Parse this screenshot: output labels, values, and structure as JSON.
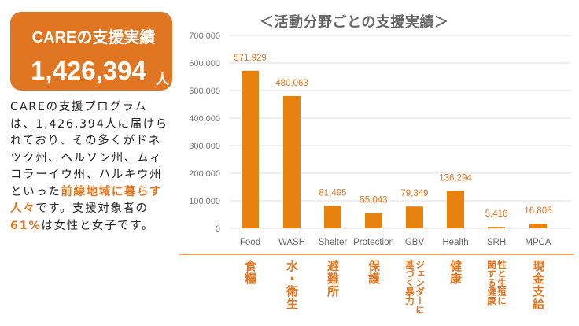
{
  "badge": {
    "title": "CAREの支援実績",
    "number": "1,426,394",
    "unit": "人"
  },
  "description": {
    "text1": "CAREの支援プログラムは、1,426,394人に届けられており、その多くがドネツク州、ヘルソン州、ムィコラーイウ州、ハルキウ州といった",
    "highlight1": "前線地域に暮らす人々",
    "text2": "です。支援対象者の",
    "highlight2": "61%",
    "text3": "は女性と女子です。"
  },
  "colors": {
    "accent": "#e07622",
    "bar": "#e8820e"
  },
  "chart_data": {
    "type": "bar",
    "title": "＜活動分野ごとの支援実績＞",
    "categories": [
      "Food",
      "WASH",
      "Shelter",
      "Protection",
      "GBV",
      "Health",
      "SRH",
      "MPCA"
    ],
    "values": [
      571929,
      480063,
      81495,
      55043,
      79349,
      136294,
      5416,
      16805
    ],
    "data_labels": [
      "571,929",
      "480,063",
      "81,495",
      "55,043",
      "79,349",
      "136,294",
      "5,416",
      "16,805"
    ],
    "yticks": [
      "0",
      "100,000",
      "200,000",
      "300,000",
      "400,000",
      "500,000",
      "600,000",
      "700,000"
    ],
    "ylim": [
      0,
      700000
    ],
    "grid": true,
    "jp_labels": [
      "食糧",
      "水・衛生",
      "避難所",
      "保護",
      "ジェンダーに\n基づく暴力",
      "健康",
      "性と生殖に\n関する健康",
      "現金支給"
    ]
  }
}
